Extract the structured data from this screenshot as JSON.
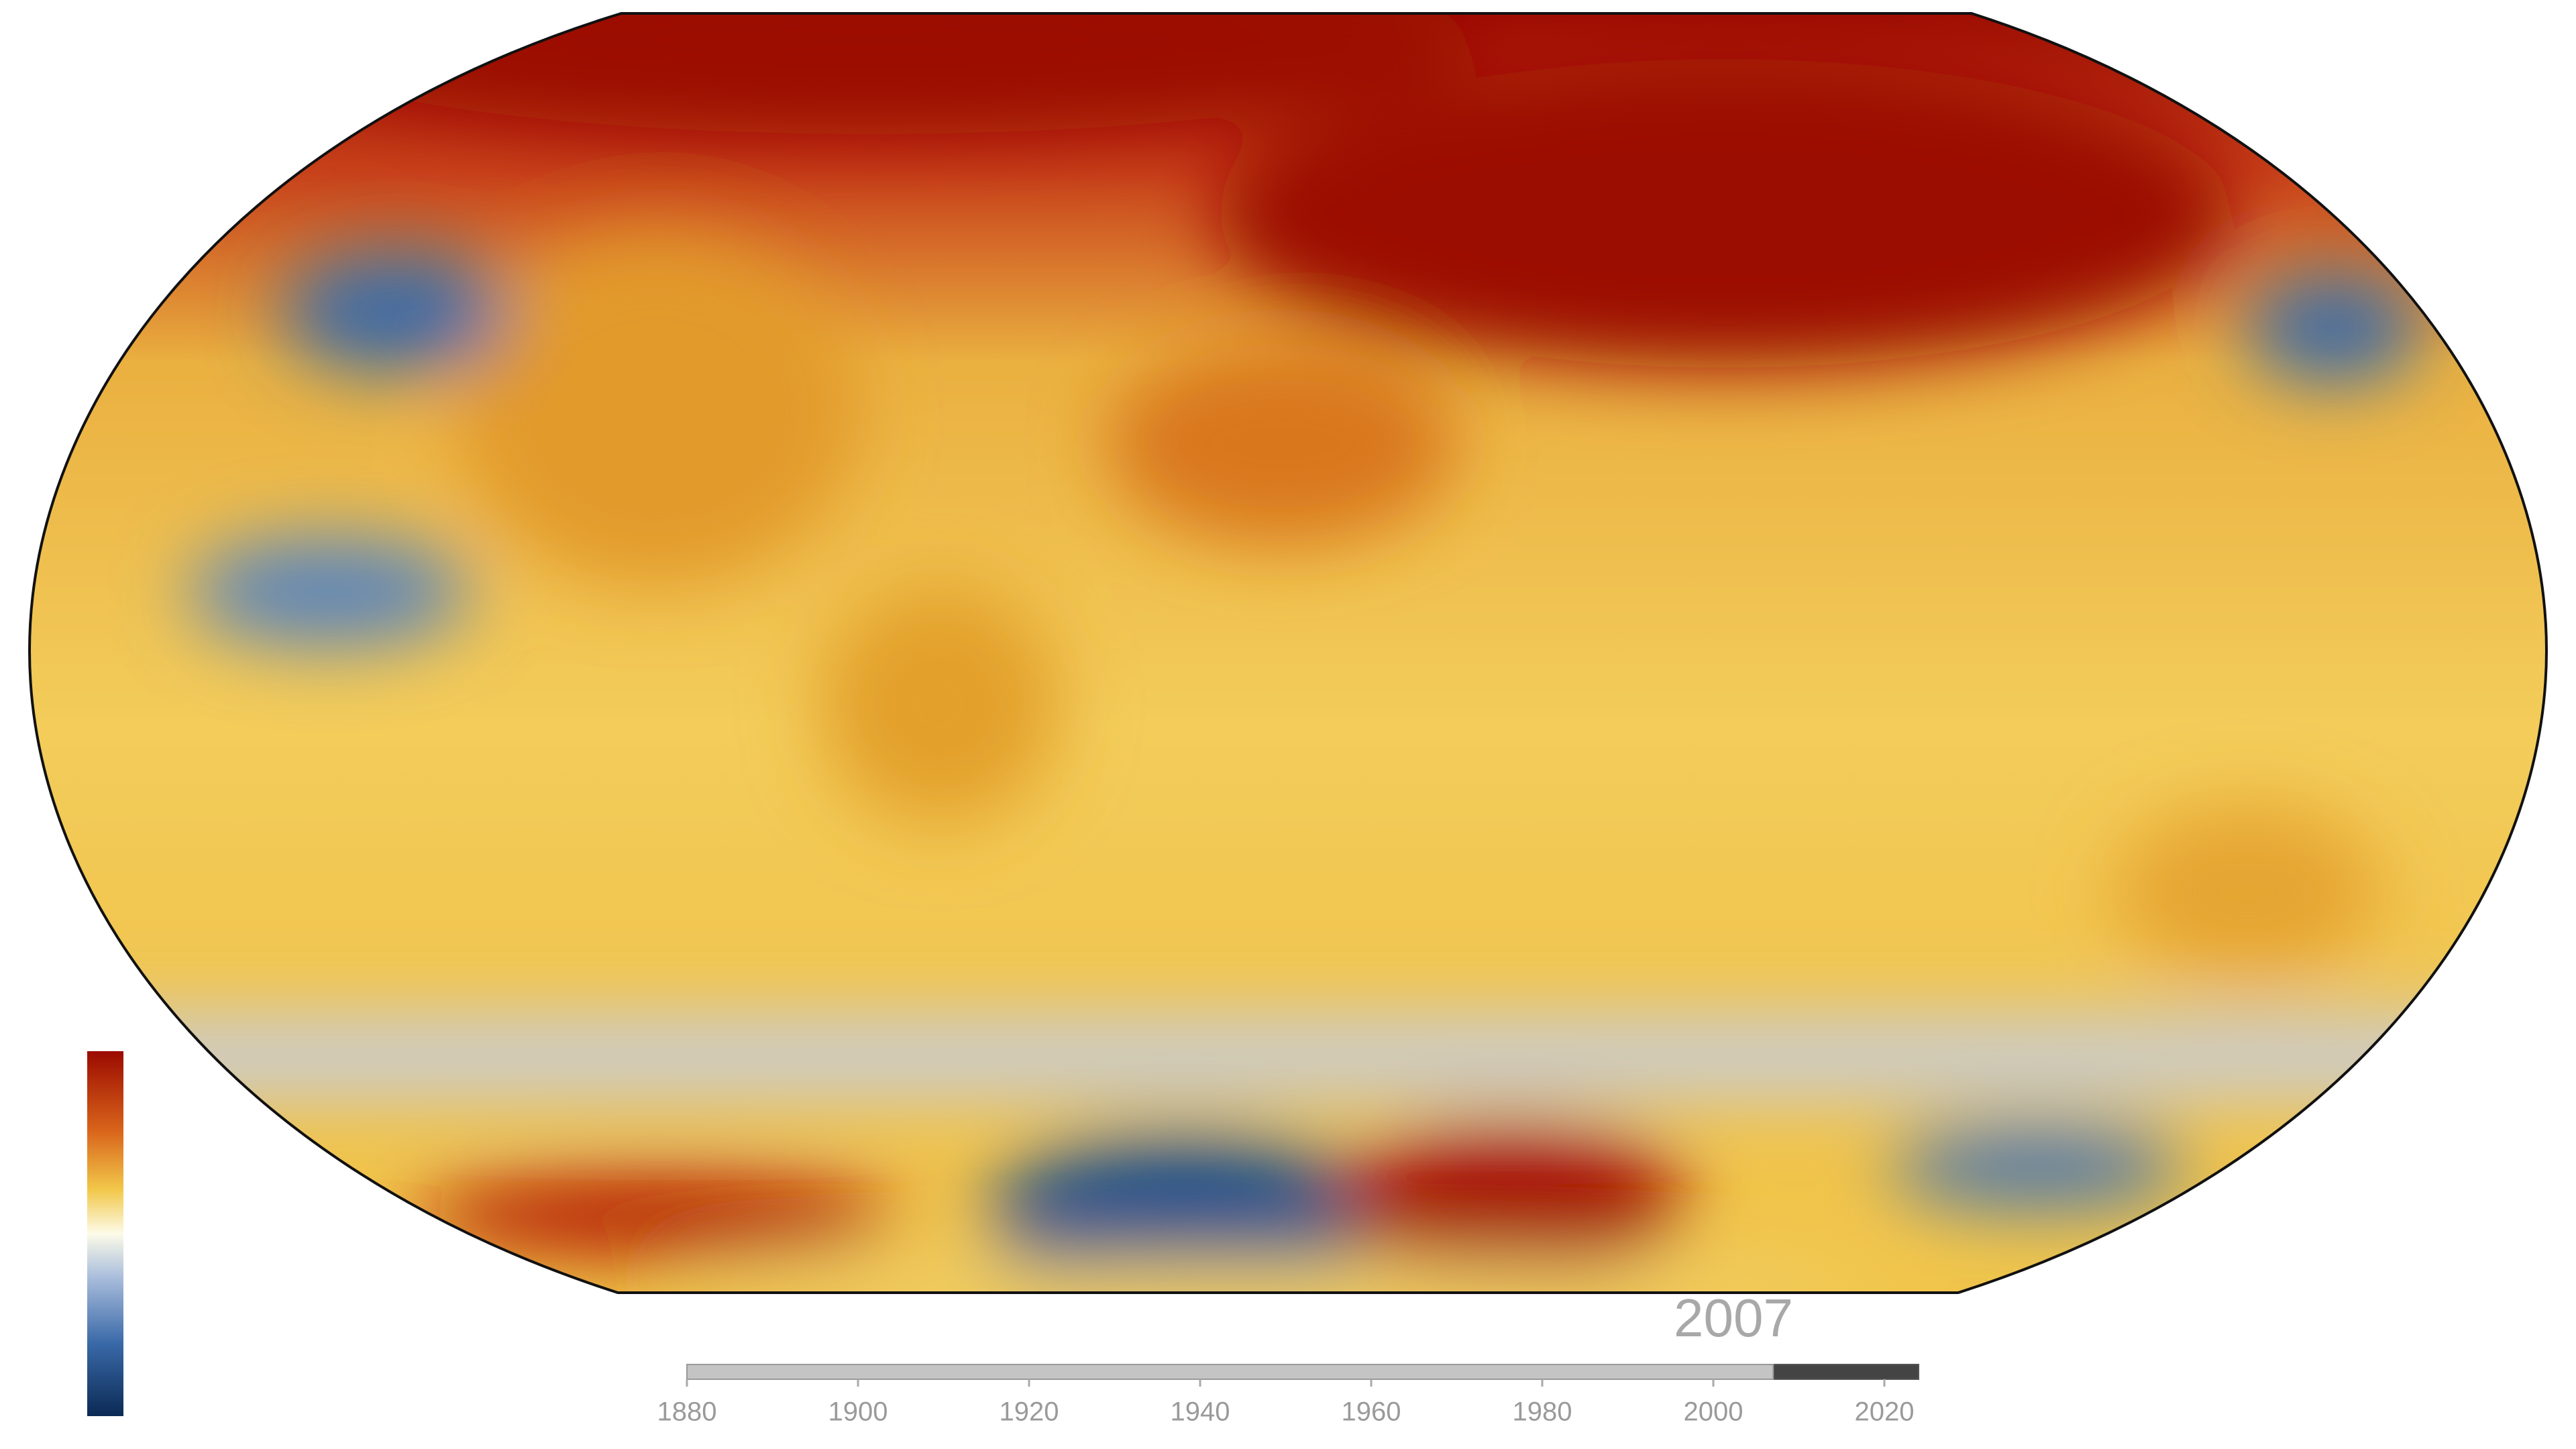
{
  "timeline": {
    "xlim": [
      1880,
      2024
    ],
    "xticks": [
      1880,
      1900,
      1920,
      1940,
      1960,
      1980,
      2000,
      2020
    ],
    "current": 2007
  }
}
